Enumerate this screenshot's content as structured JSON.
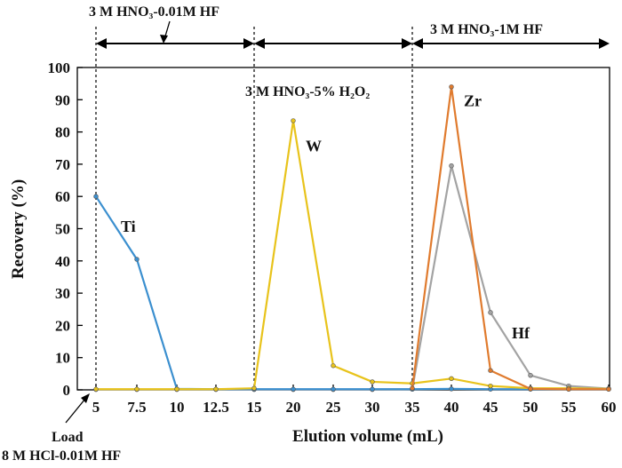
{
  "chart_data": {
    "type": "line",
    "xlabel": "Elution volume (mL)",
    "ylabel": "Recovery  (%)",
    "xlim": [
      5,
      60
    ],
    "ylim": [
      0,
      100
    ],
    "x_ticks": [
      5,
      7.5,
      10,
      12.5,
      15,
      20,
      25,
      30,
      35,
      40,
      45,
      50,
      55,
      60
    ],
    "x_tick_labels": [
      "5",
      "7.5",
      "10",
      "12.5",
      "15",
      "20",
      "25",
      "30",
      "35",
      "40",
      "45",
      "50",
      "55",
      "60"
    ],
    "y_ticks": [
      0,
      10,
      20,
      30,
      40,
      50,
      60,
      70,
      80,
      90,
      100
    ],
    "y_tick_labels": [
      "0",
      "10",
      "20",
      "30",
      "40",
      "50",
      "60",
      "70",
      "80",
      "90",
      "100"
    ],
    "series": [
      {
        "name": "Ti",
        "color": "#3b8fcf",
        "x": [
          5,
          7.5,
          10,
          12.5,
          15,
          20,
          25,
          30,
          35,
          40,
          45,
          50,
          55,
          60
        ],
        "values": [
          60,
          40.5,
          0.3,
          0.2,
          0.2,
          0.2,
          0.2,
          0.2,
          0.2,
          0.3,
          0.2,
          0.2,
          0.2,
          0.2
        ]
      },
      {
        "name": "W",
        "color": "#e8c31b",
        "x": [
          5,
          7.5,
          10,
          12.5,
          15,
          20,
          25,
          30,
          35,
          40,
          45,
          50,
          55,
          60
        ],
        "values": [
          0.2,
          0.2,
          0.2,
          0.2,
          0.5,
          83.5,
          7.5,
          2.5,
          2,
          3.5,
          1.2,
          0.5,
          0.5,
          0.3
        ]
      },
      {
        "name": "Zr",
        "color": "#e07b2e",
        "x": [
          35,
          40,
          45,
          50,
          55,
          60
        ],
        "values": [
          0.5,
          94,
          6,
          0.3,
          0.2,
          0.2
        ]
      },
      {
        "name": "Hf",
        "color": "#a3a3a3",
        "x": [
          5,
          7.5,
          10,
          12.5,
          15,
          20,
          25,
          30,
          35,
          40,
          45,
          50,
          55,
          60
        ],
        "values": [
          0.1,
          0.1,
          0.1,
          0.1,
          0.1,
          0.1,
          0.1,
          0.1,
          0.2,
          69.5,
          24,
          4.5,
          1.2,
          0.4
        ]
      }
    ],
    "dividers_x": [
      5,
      15,
      35
    ],
    "annotations": {
      "region1": "3 M HNO₃-0.01M HF",
      "region2": "3 M HNO₃-5% H₂O₂",
      "region3": "3 M HNO₃-1M HF",
      "load": "Load",
      "load_solution": "8 M HCl-0.01M HF"
    }
  }
}
